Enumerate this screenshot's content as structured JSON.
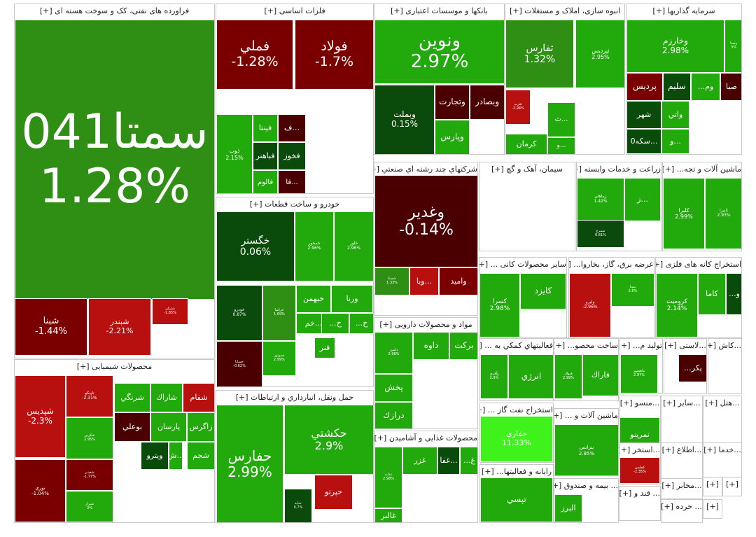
{
  "colors": {
    "dark_red": "#4a0000",
    "red": "#b80f0f",
    "mid_red": "#7a0000",
    "dark_green": "#0a4a0a",
    "green": "#2f8f15",
    "light_green": "#22a90b",
    "bright_green": "#3ff21b"
  },
  "sectors": [
    {
      "id": "oil",
      "label": "فراورده های نفتی، کک و سوخت هسته ای [+]",
      "tiles": [
        {
          "name": "سمتا041",
          "pct": "1.28%",
          "c": "#2f8f15"
        },
        {
          "name": "شبنا",
          "pct": "-1.44%",
          "c": "#7a0000"
        },
        {
          "name": "شبندر",
          "pct": "-2.21%",
          "c": "#b80f0f"
        },
        {
          "name": "شتران",
          "pct": "-1.85%",
          "c": "#b80f0f"
        }
      ]
    },
    {
      "id": "metals",
      "label": "فلزات اساسی [+]",
      "tiles": [
        {
          "name": "فولاد",
          "pct": "-1.7%",
          "c": "#7a0000"
        },
        {
          "name": "فملي",
          "pct": "-1.28%",
          "c": "#7a0000"
        },
        {
          "name": "ذوب",
          "pct": "2.15%",
          "c": "#22a90b"
        },
        {
          "name": "فينتا",
          "pct": "",
          "c": "#22a90b"
        },
        {
          "name": "فباهنر",
          "pct": "",
          "c": "#0a4a0a"
        },
        {
          "name": "فالوم",
          "pct": "",
          "c": "#22a90b"
        },
        {
          "name": "ف...",
          "pct": "",
          "c": "#4a0000"
        },
        {
          "name": "فخوز",
          "pct": "",
          "c": "#0a4a0a"
        },
        {
          "name": "فا...",
          "pct": "",
          "c": "#4a0000"
        }
      ]
    },
    {
      "id": "banks",
      "label": "بانکها و موسسات اعتباری [+]",
      "tiles": [
        {
          "name": "ونوين",
          "pct": "2.97%",
          "c": "#22a90b"
        },
        {
          "name": "وبملت",
          "pct": "0.15%",
          "c": "#0a4a0a"
        },
        {
          "name": "وتجارت",
          "pct": "",
          "c": "#4a0000"
        },
        {
          "name": "وبصادر",
          "pct": "",
          "c": "#4a0000"
        },
        {
          "name": "وپارس",
          "pct": "",
          "c": "#22a90b"
        }
      ]
    },
    {
      "id": "construction",
      "label": "انبوه سازی، املاک و مستغلات [+]",
      "tiles": [
        {
          "name": "ثفارس",
          "pct": "1.32%",
          "c": "#2f8f15"
        },
        {
          "name": "ثپرديس",
          "pct": "2.95%",
          "c": "#22a90b"
        },
        {
          "name": "ثغرب",
          "pct": "-2.94%",
          "c": "#b80f0f"
        },
        {
          "name": "ث...",
          "pct": "",
          "c": "#22a90b"
        },
        {
          "name": "كرمان",
          "pct": "",
          "c": "#22a90b"
        },
        {
          "name": "و...",
          "pct": "",
          "c": "#22a90b"
        }
      ]
    },
    {
      "id": "investment",
      "label": "سرمایه گذاریها [+]",
      "tiles": [
        {
          "name": "وخارزم",
          "pct": "2.98%",
          "c": "#22a90b"
        },
        {
          "name": "وسنا",
          "pct": "3%",
          "c": "#22a90b"
        },
        {
          "name": "پرديس",
          "pct": "",
          "c": "#7a0000"
        },
        {
          "name": "سليم",
          "pct": "",
          "c": "#0a4a0a"
        },
        {
          "name": "...وم",
          "pct": "",
          "c": "#22a90b"
        },
        {
          "name": "صبا",
          "pct": "",
          "c": "#4a0000"
        },
        {
          "name": "شهر",
          "pct": "",
          "c": "#0a4a0a"
        },
        {
          "name": "واتي",
          "pct": "",
          "c": "#22a90b"
        },
        {
          "name": "سكه0...",
          "pct": "",
          "c": "#0a4a0a"
        },
        {
          "name": "و...",
          "pct": "",
          "c": "#22a90b"
        }
      ]
    },
    {
      "id": "auto",
      "label": "خودرو و ساخت قطعات [+]",
      "tiles": [
        {
          "name": "خگستر",
          "pct": "0.06%",
          "c": "#0a4a0a"
        },
        {
          "name": "خمحور",
          "pct": "2.96%",
          "c": "#22a90b"
        },
        {
          "name": "خاور",
          "pct": "2.96%",
          "c": "#22a90b"
        },
        {
          "name": "خودرو",
          "pct": "0.87%",
          "c": "#0a4a0a"
        },
        {
          "name": "خزاميا",
          "pct": "1.69%",
          "c": "#2f8f15"
        },
        {
          "name": "خبهمن",
          "pct": "",
          "c": "#22a90b"
        },
        {
          "name": "ورنا",
          "pct": "",
          "c": "#22a90b"
        },
        {
          "name": "خساپا",
          "pct": "-0.62%",
          "c": "#4a0000"
        },
        {
          "name": "خموتور",
          "pct": "2.99%",
          "c": "#22a90b"
        },
        {
          "name": "خم...",
          "pct": "",
          "c": "#22a90b"
        },
        {
          "name": "...خ",
          "pct": "",
          "c": "#22a90b"
        },
        {
          "name": "...خ",
          "pct": "",
          "c": "#22a90b"
        },
        {
          "name": "فنر",
          "pct": "",
          "c": "#22a90b"
        }
      ]
    },
    {
      "id": "multi",
      "label": "شرکتهاي چند رشته اي صنعتي [+]",
      "tiles": [
        {
          "name": "وغدير",
          "pct": "-0.14%",
          "c": "#4a0000"
        },
        {
          "name": "شستا",
          "pct": "1.33%",
          "c": "#2f8f15"
        },
        {
          "name": "وبا...",
          "pct": "",
          "c": "#b80f0f"
        },
        {
          "name": "واميد",
          "pct": "",
          "c": "#7a0000"
        }
      ]
    },
    {
      "id": "cement",
      "label": "سیمان، آهک و گچ [+]",
      "tiles": []
    },
    {
      "id": "agri",
      "label": "زراعت و خدمات وابسته [+]",
      "tiles": [
        {
          "name": "زماهان",
          "pct": "1.42%",
          "c": "#22a90b"
        },
        {
          "name": "ز...",
          "pct": "",
          "c": "#22a90b"
        },
        {
          "name": "سمرغ",
          "pct": "0.61%",
          "c": "#0a4a0a"
        }
      ]
    },
    {
      "id": "machinery",
      "label": "ماشین آلات و تجه... [+]",
      "tiles": [
        {
          "name": "كلبرا",
          "pct": "2.99%",
          "c": "#22a90b"
        },
        {
          "name": "تاپيرا",
          "pct": "2.93%",
          "c": "#22a90b"
        }
      ]
    },
    {
      "id": "nonmetal",
      "label": "سایر محصولات کانی ... [+]",
      "tiles": [
        {
          "name": "كسرا",
          "pct": "2.98%",
          "c": "#22a90b"
        },
        {
          "name": "كايزد",
          "pct": "",
          "c": "#22a90b"
        }
      ]
    },
    {
      "id": "power",
      "label": "عرضه برق، گاز، بخاروا... [+]",
      "tiles": [
        {
          "name": "وليرو",
          "pct": "-2.96%",
          "c": "#b80f0f"
        },
        {
          "name": "بمپنا",
          "pct": "2.8%",
          "c": "#22a90b"
        }
      ]
    },
    {
      "id": "mining",
      "label": "استخراج کانه های فلزی [+]",
      "tiles": [
        {
          "name": "كروميت",
          "pct": "2.14%",
          "c": "#22a90b"
        },
        {
          "name": "كاما",
          "pct": "",
          "c": "#22a90b"
        },
        {
          "name": "...و",
          "pct": "",
          "c": "#0a4a0a"
        }
      ]
    },
    {
      "id": "chem",
      "label": "محصولات شیمیایی [+]",
      "tiles": [
        {
          "name": "شپديس",
          "pct": "-2.3%",
          "c": "#b80f0f"
        },
        {
          "name": "تاپيكو",
          "pct": "-2.31%",
          "c": "#b80f0f"
        },
        {
          "name": "شرنگي",
          "pct": "",
          "c": "#22a90b"
        },
        {
          "name": "شاراك",
          "pct": "",
          "c": "#22a90b"
        },
        {
          "name": "شفام",
          "pct": "",
          "c": "#b80f0f"
        },
        {
          "name": "بوعلي",
          "pct": "",
          "c": "#4a0000"
        },
        {
          "name": "پارسان",
          "pct": "",
          "c": "#22a90b"
        },
        {
          "name": "زاگرس",
          "pct": "",
          "c": "#22a90b"
        },
        {
          "name": "شكربن",
          "pct": "2.95%",
          "c": "#22a90b"
        },
        {
          "name": "ويترو",
          "pct": "",
          "c": "#0a4a0a"
        },
        {
          "name": "ش...",
          "pct": "",
          "c": "#22a90b"
        },
        {
          "name": "شجم",
          "pct": "",
          "c": "#22a90b"
        },
        {
          "name": "نوري",
          "pct": "-1.04%",
          "c": "#7a0000"
        },
        {
          "name": "شغدير",
          "pct": "-1.77%",
          "c": "#7a0000"
        },
        {
          "name": "شيراز",
          "pct": "3%",
          "c": "#22a90b"
        }
      ]
    },
    {
      "id": "transport",
      "label": "حمل ونقل، انبارداري و ارتباطات [+]",
      "tiles": [
        {
          "name": "حفارس",
          "pct": "2.99%",
          "c": "#22a90b"
        },
        {
          "name": "حکشتي",
          "pct": "2.9%",
          "c": "#22a90b"
        },
        {
          "name": "حپرتو",
          "pct": "",
          "c": "#b80f0f"
        },
        {
          "name": "حتايد",
          "pct": "0.7%",
          "c": "#0a4a0a"
        }
      ]
    },
    {
      "id": "pharma",
      "label": "مواد و محصولات دارویی [+]",
      "tiles": [
        {
          "name": "دامين",
          "pct": "2.98%",
          "c": "#22a90b"
        },
        {
          "name": "داوه",
          "pct": "",
          "c": "#22a90b"
        },
        {
          "name": "بركت",
          "pct": "",
          "c": "#22a90b"
        },
        {
          "name": "پخش",
          "pct": "",
          "c": "#22a90b"
        },
        {
          "name": "درازك",
          "pct": "",
          "c": "#22a90b"
        }
      ]
    },
    {
      "id": "food",
      "label": "محصولات غذایی و آشامیدن [+]",
      "tiles": [
        {
          "name": "غزر",
          "pct": "",
          "c": "#22a90b"
        },
        {
          "name": "غفا...",
          "pct": "",
          "c": "#0a4a0a"
        },
        {
          "name": "...غ",
          "pct": "",
          "c": "#22a90b"
        },
        {
          "name": "غدانه",
          "pct": "2.98%",
          "c": "#22a90b"
        },
        {
          "name": "غالبر",
          "pct": "",
          "c": "#22a90b"
        }
      ]
    },
    {
      "id": "aux",
      "label": "فعالیتهاي کمکي به ... [+]",
      "tiles": [
        {
          "name": "انرژي",
          "pct": "",
          "c": "#22a90b"
        },
        {
          "name": "وآفري",
          "pct": "2.9%",
          "c": "#22a90b"
        }
      ]
    },
    {
      "id": "oilgas",
      "label": "استخراج نفت گاز ... [+]",
      "tiles": [
        {
          "name": "حفاري",
          "pct": "11.33%",
          "c": "#3ff21b"
        }
      ]
    },
    {
      "id": "computer",
      "label": "رایانه و فعالیتها... [+]",
      "tiles": [
        {
          "name": "تپسي",
          "pct": "",
          "c": "#22a90b"
        }
      ]
    },
    {
      "id": "metalprod",
      "label": "ساخت محصو... [+]",
      "tiles": [
        {
          "name": "فاراك",
          "pct": "",
          "c": "#22a90b"
        },
        {
          "name": "فنوال",
          "pct": "2.99%",
          "c": "#22a90b"
        }
      ]
    },
    {
      "id": "production",
      "label": "تولید م... [+]",
      "tiles": [
        {
          "name": "ماهشهر",
          "pct": "2.97%",
          "c": "#22a90b"
        }
      ]
    },
    {
      "id": "plastic",
      "label": "...لاستی [+]",
      "tiles": [
        {
          "name": "...پكر",
          "pct": "",
          "c": "#4a0000"
        }
      ]
    },
    {
      "id": "kash",
      "label": "...کاش [+]",
      "tiles": []
    },
    {
      "id": "machinery2",
      "label": "ماشین آلات و ... [+]",
      "tiles": [
        {
          "name": "بترانس",
          "pct": "2.95%",
          "c": "#22a90b"
        }
      ]
    },
    {
      "id": "nonmetal2",
      "label": "...منسو [+]",
      "tiles": [
        {
          "name": "نمرينو",
          "pct": "",
          "c": "#22a90b"
        }
      ]
    },
    {
      "id": "other",
      "label": "...سایر [+]",
      "tiles": []
    },
    {
      "id": "hotel",
      "label": "...هتل [+]",
      "tiles": []
    },
    {
      "id": "extraction",
      "label": "...استخر [+]",
      "tiles": [
        {
          "name": "كطبس",
          "pct": "-2.35%",
          "c": "#b80f0f"
        }
      ]
    },
    {
      "id": "info",
      "label": "...اطلاع [+]",
      "tiles": []
    },
    {
      "id": "services",
      "label": "...خدما [+]",
      "tiles": []
    },
    {
      "id": "insurance",
      "label": "... بیمه و صندوق [+]",
      "tiles": [
        {
          "name": "البرز",
          "pct": "",
          "c": "#22a90b"
        }
      ]
    },
    {
      "id": "media",
      "label": "...مخابر [+]",
      "tiles": []
    },
    {
      "id": "sugar",
      "label": "... قند و [+]",
      "tiles": []
    },
    {
      "id": "retail",
      "label": "... خرده [+]",
      "tiles": []
    },
    {
      "id": "misc1",
      "label": "[+]",
      "tiles": []
    },
    {
      "id": "misc2",
      "label": "[+]",
      "tiles": []
    },
    {
      "id": "misc3",
      "label": "[+]",
      "tiles": []
    }
  ]
}
